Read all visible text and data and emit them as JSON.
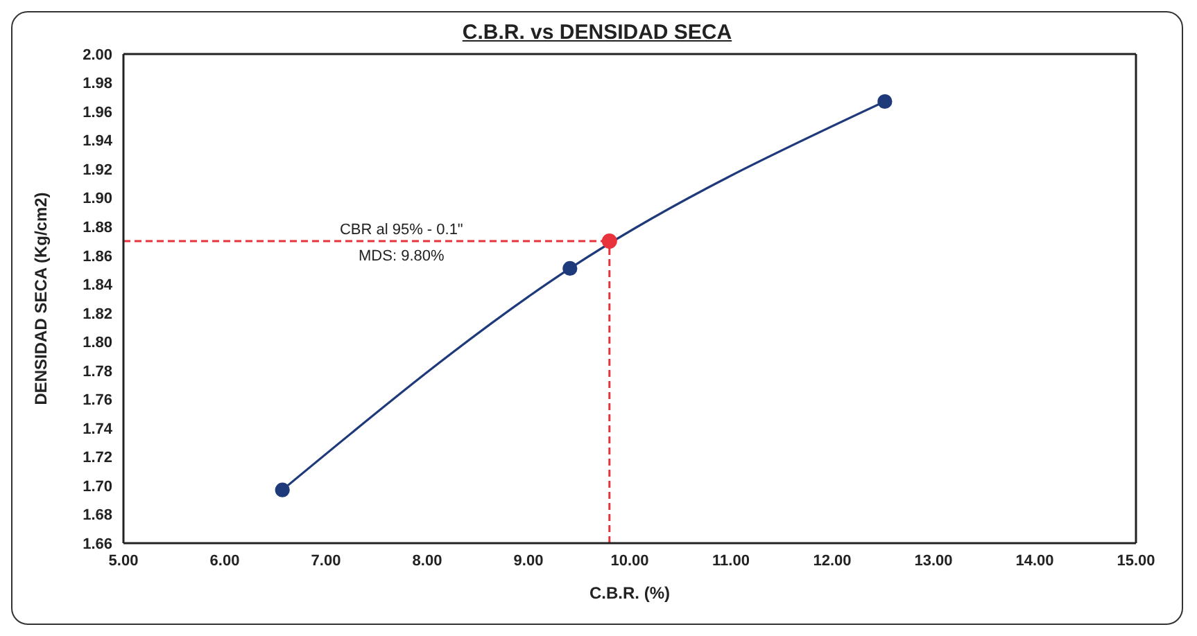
{
  "chart_data": {
    "type": "line",
    "title": "C.B.R. vs DENSIDAD SECA",
    "xlabel": "C.B.R. (%)",
    "ylabel": "DENSIDAD SECA (Kg/cm2)",
    "series": [
      {
        "color": "#1f3a7a",
        "x": [
          6.57,
          9.41,
          12.52
        ],
        "values": [
          1.697,
          1.851,
          1.967
        ]
      },
      {
        "type": "scatter",
        "color": "#e8323c",
        "x": [
          9.8
        ],
        "values": [
          1.87
        ]
      }
    ],
    "xlim": [
      5,
      15
    ],
    "xticks": [
      {
        "value": 5,
        "label": "5.00"
      },
      {
        "value": 6,
        "label": "6.00"
      },
      {
        "value": 7,
        "label": "7.00"
      },
      {
        "value": 8,
        "label": "8.00"
      },
      {
        "value": 9,
        "label": "9.00"
      },
      {
        "value": 10,
        "label": "10.00"
      },
      {
        "value": 11,
        "label": "11.00"
      },
      {
        "value": 12,
        "label": "12.00"
      },
      {
        "value": 13,
        "label": "13.00"
      },
      {
        "value": 14,
        "label": "14.00"
      },
      {
        "value": 15,
        "label": "15.00"
      }
    ],
    "ylim": [
      1.66,
      2.0
    ],
    "yticks": [
      {
        "value": 1.66,
        "label": "1.66"
      },
      {
        "value": 1.68,
        "label": "1.68"
      },
      {
        "value": 1.7,
        "label": "1.70"
      },
      {
        "value": 1.72,
        "label": "1.72"
      },
      {
        "value": 1.74,
        "label": "1.74"
      },
      {
        "value": 1.76,
        "label": "1.76"
      },
      {
        "value": 1.78,
        "label": "1.78"
      },
      {
        "value": 1.8,
        "label": "1.80"
      },
      {
        "value": 1.82,
        "label": "1.82"
      },
      {
        "value": 1.84,
        "label": "1.84"
      },
      {
        "value": 1.86,
        "label": "1.86"
      },
      {
        "value": 1.88,
        "label": "1.88"
      },
      {
        "value": 1.9,
        "label": "1.90"
      },
      {
        "value": 1.92,
        "label": "1.92"
      },
      {
        "value": 1.94,
        "label": "1.94"
      },
      {
        "value": 1.96,
        "label": "1.96"
      },
      {
        "value": 1.98,
        "label": "1.98"
      },
      {
        "value": 2.0,
        "label": "2.00"
      }
    ],
    "ref_lines": [
      {
        "axis": "x",
        "value": 9.8,
        "color": "#e8323c",
        "line_style": "dashed"
      },
      {
        "axis": "y",
        "value": 1.87,
        "color": "#e8323c",
        "line_style": "dashed"
      }
    ],
    "annotations": [
      "CBR al 95% - 0.1\"",
      "MDS: 9.80%"
    ],
    "marker": "circle"
  }
}
